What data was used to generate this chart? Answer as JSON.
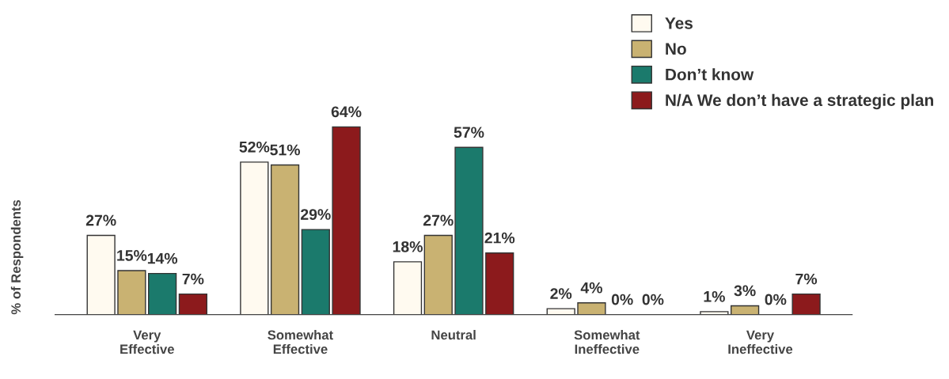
{
  "chart_data": {
    "type": "bar",
    "ylabel": "% of Respondents",
    "categories": [
      "Very\nEffective",
      "Somewhat\nEffective",
      "Neutral",
      "Somewhat\nIneffective",
      "Very\nIneffective"
    ],
    "series": [
      {
        "name": "Yes",
        "color": "#fffaf0",
        "values": [
          27,
          52,
          18,
          2,
          1
        ],
        "value_labels": [
          "27%",
          "52%",
          "18%",
          "2%",
          "1%"
        ]
      },
      {
        "name": "No",
        "color": "#c9b272",
        "values": [
          15,
          51,
          27,
          4,
          3
        ],
        "value_labels": [
          "15%",
          "51%",
          "27%",
          "4%",
          "3%"
        ]
      },
      {
        "name": "Don’t know",
        "color": "#1b7a6c",
        "values": [
          14,
          29,
          57,
          0,
          0
        ],
        "value_labels": [
          "14%",
          "29%",
          "57%",
          "0%",
          "0%"
        ]
      },
      {
        "name": "N/A We don’t have a strategic plan",
        "color": "#8c1a1c",
        "values": [
          7,
          64,
          21,
          0,
          7
        ],
        "value_labels": [
          "7%",
          "64%",
          "21%",
          "0%",
          "7%"
        ]
      }
    ],
    "legend": "top right",
    "grid": false
  }
}
